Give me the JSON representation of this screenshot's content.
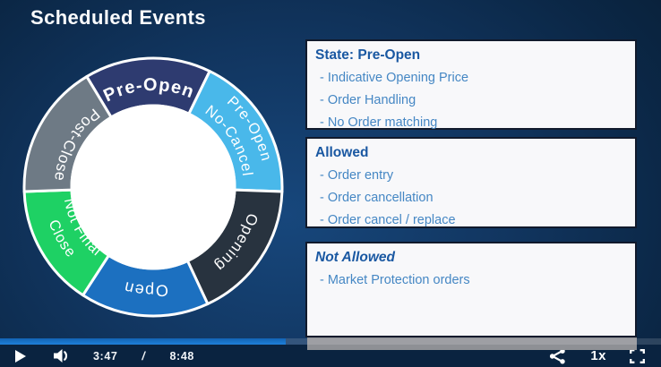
{
  "title": "Scheduled Events",
  "wheel": {
    "outer_r": 144,
    "inner_r": 91,
    "ring_outline_color": "#ffffff",
    "hole_color": "#ffffff",
    "segments": [
      {
        "id": "pre-open",
        "label": "Pre-Open",
        "color": "#2e3b70",
        "start": -31,
        "end": 26,
        "dir": "cw",
        "lines": [
          {
            "text": "Pre-Open",
            "r": 108,
            "size": 20,
            "bold": true
          }
        ]
      },
      {
        "id": "pre-open-no-cancel",
        "label": "Pre-Open No-Cancel",
        "color": "#49b8ea",
        "start": 26,
        "end": 92,
        "dir": "cw",
        "lines": [
          {
            "text": "Pre-Open",
            "r": 125,
            "size": 16.5,
            "bold": false
          },
          {
            "text": "No-Cancel",
            "r": 101,
            "size": 16.5,
            "bold": false
          }
        ]
      },
      {
        "id": "opening",
        "label": "Opening",
        "color": "#28333f",
        "start": 92,
        "end": 155,
        "dir": "cw",
        "lines": [
          {
            "text": "Opening",
            "r": 110,
            "size": 17,
            "bold": false
          }
        ]
      },
      {
        "id": "open",
        "label": "Open",
        "color": "#1c70c0",
        "start": 155,
        "end": 213,
        "dir": "cw",
        "lines": [
          {
            "text": "Open",
            "r": 110,
            "size": 18,
            "bold": false
          }
        ]
      },
      {
        "id": "close-not-final",
        "label": "Close Not Final",
        "color": "#1ed164",
        "start": 213,
        "end": 268,
        "dir": "ccw",
        "lines": [
          {
            "text": "Close",
            "r": 123,
            "size": 16.5,
            "bold": false
          },
          {
            "text": "Not Final",
            "r": 100,
            "size": 16.5,
            "bold": false
          }
        ]
      },
      {
        "id": "post-close",
        "label": "Post-Close",
        "color": "#6e7a85",
        "start": 268,
        "end": 329,
        "dir": "ccw",
        "lines": [
          {
            "text": "Post-Close",
            "r": 110,
            "size": 17.5,
            "bold": false
          }
        ]
      }
    ]
  },
  "panels": [
    {
      "heading": "State: Pre-Open",
      "italic": false,
      "items": [
        "- Indicative Opening Price",
        "- Order Handling",
        "- No Order matching"
      ]
    },
    {
      "heading": "Allowed",
      "italic": false,
      "items": [
        "- Order entry",
        "- Order cancellation",
        "- Order cancel / replace"
      ]
    },
    {
      "heading": "Not Allowed",
      "italic": true,
      "items": [
        "- Market Protection orders"
      ]
    }
  ],
  "player": {
    "current_time": "3:47",
    "separator": "/",
    "duration": "8:48",
    "speed": "1x",
    "progress_percent": 43.2,
    "icons": [
      "play-icon",
      "volume-icon",
      "share-icon",
      "fullscreen-icon"
    ]
  },
  "colors": {
    "slide_background": "#0f3055",
    "control_bar": "#0a2340",
    "progress_fill": "#1b76d4",
    "progress_track_tint": "rgba(255,255,255,0.14)",
    "panel_background": "#f8f8fa",
    "panel_border": "#111a2c",
    "panel_heading_text": "#1a58a2",
    "panel_item_text": "#4587c4",
    "panel_shadow_gray": "#8e9095",
    "title_text": "#fbfcfe"
  }
}
